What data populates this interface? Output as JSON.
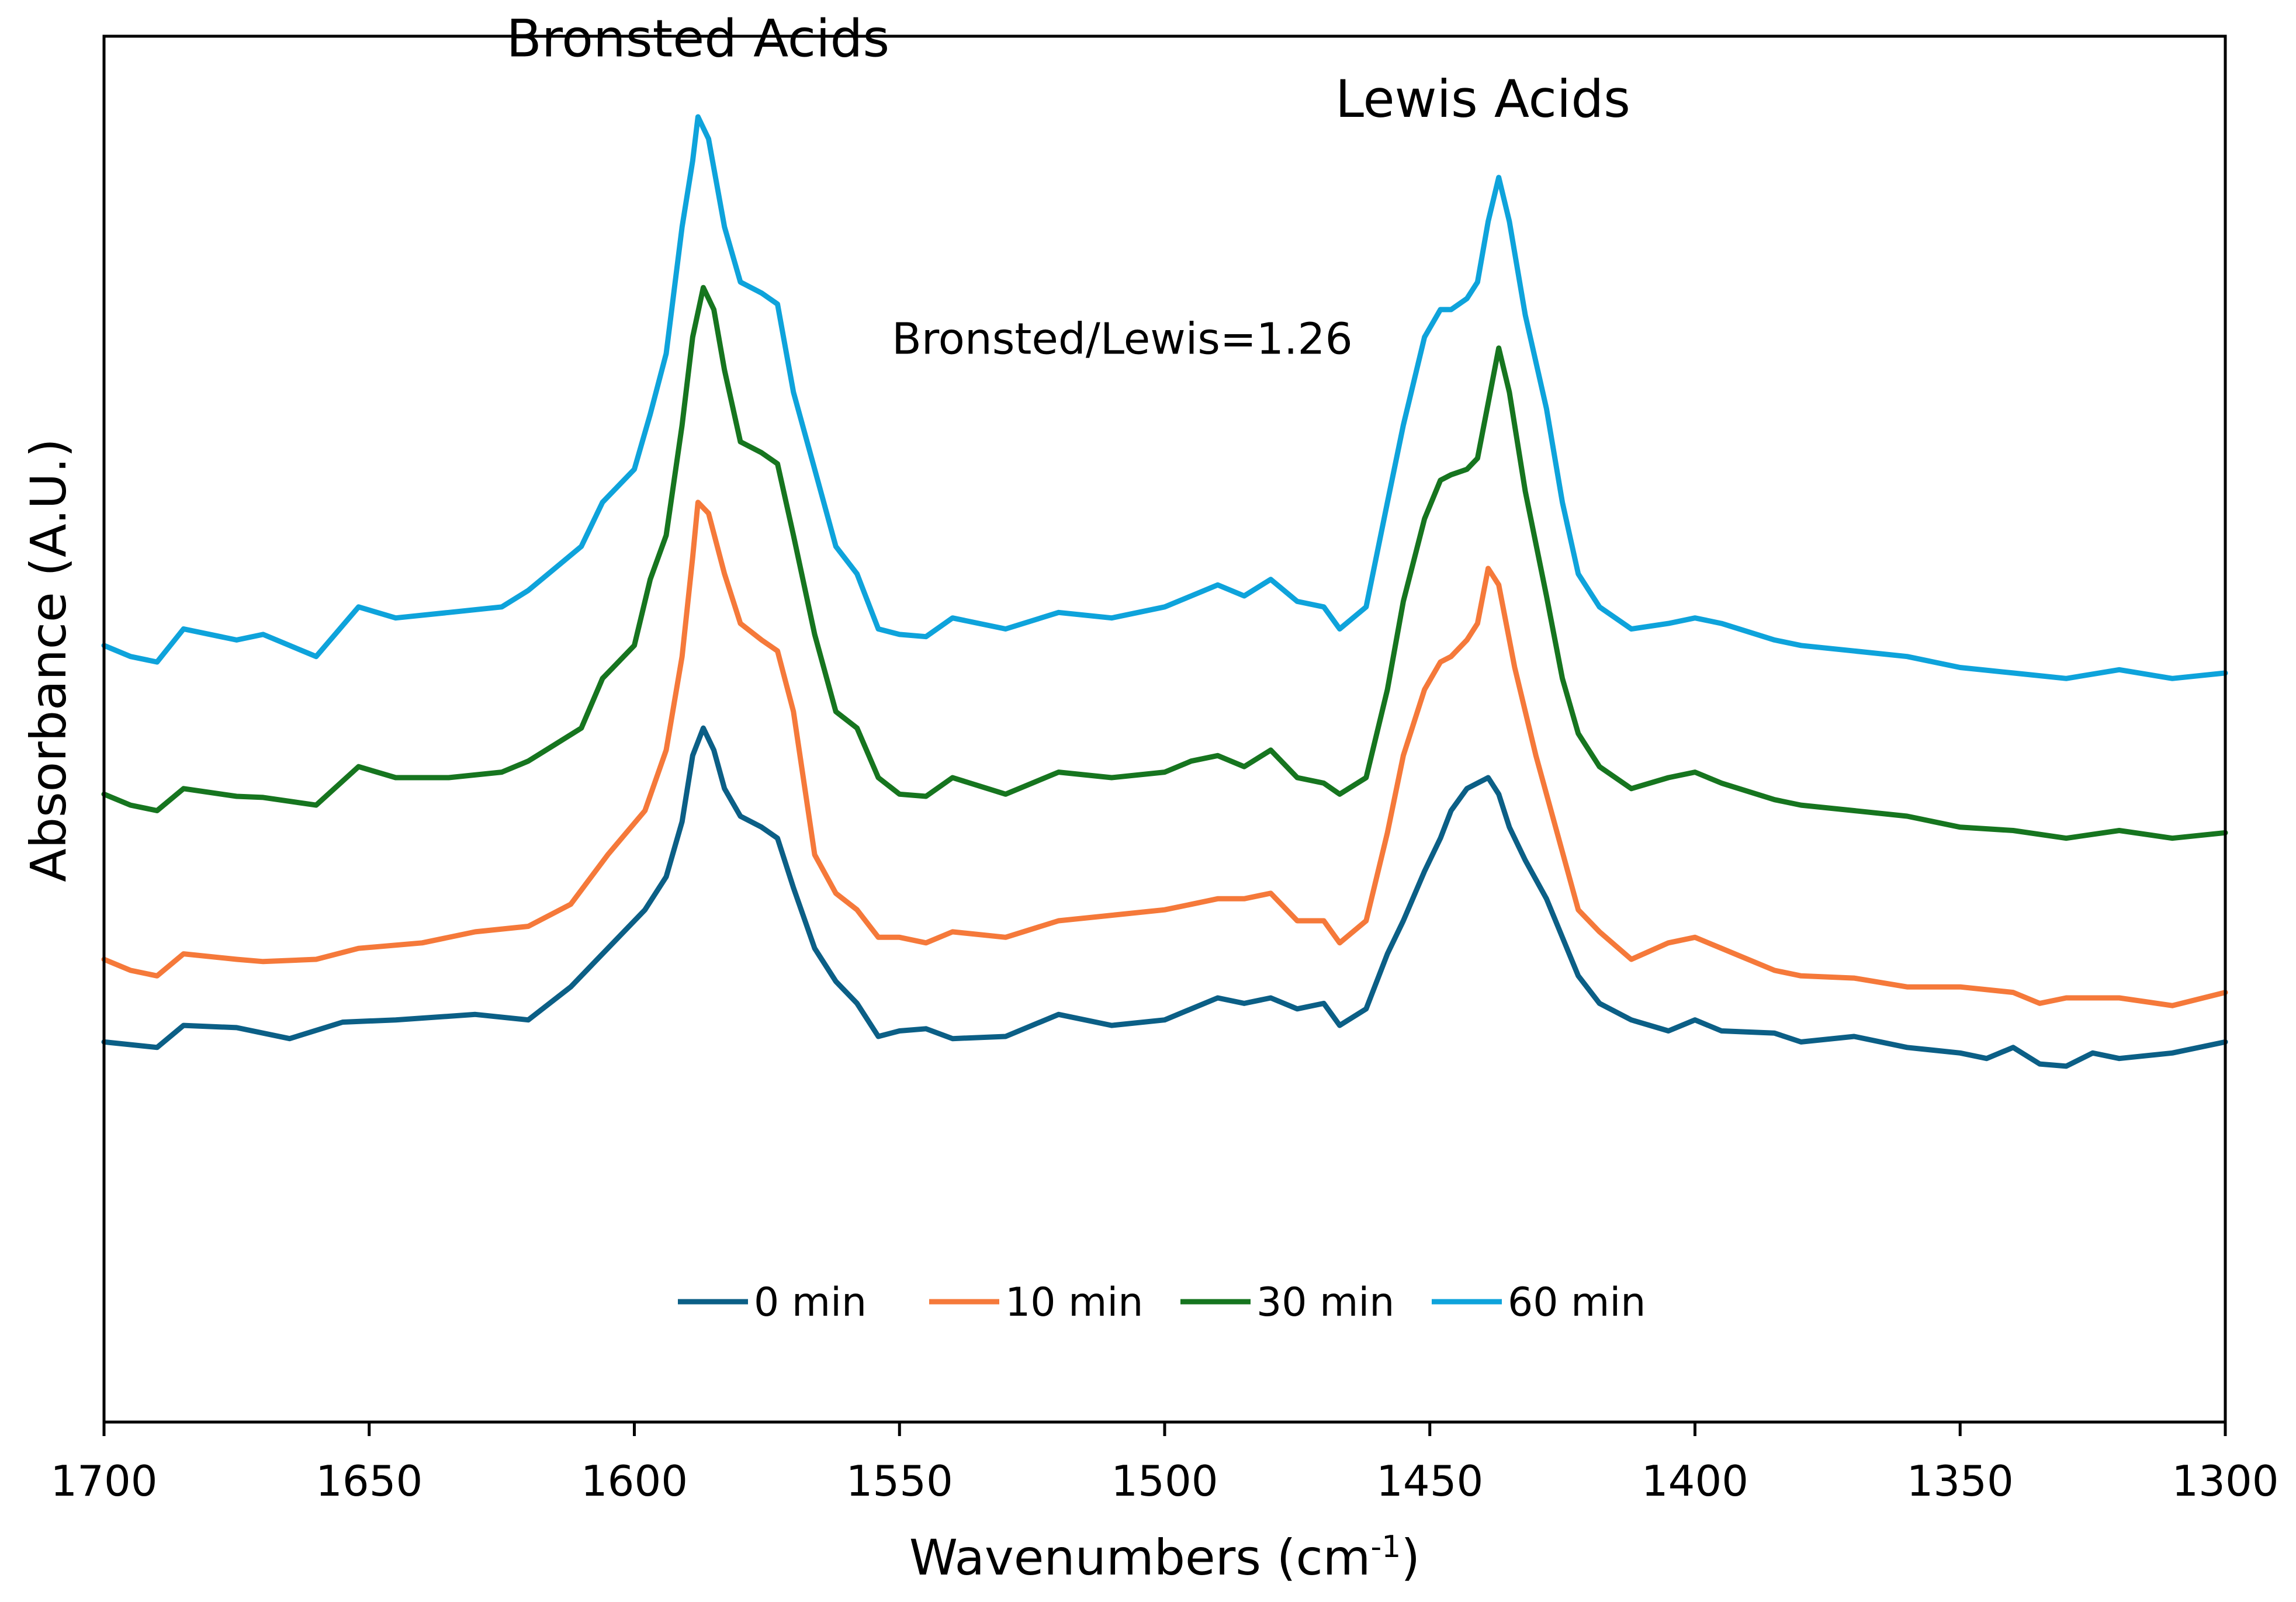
{
  "chart_data": {
    "type": "line",
    "title": "",
    "xlabel": "Wavenumbers (cm",
    "xlabel_sup": "-1",
    "xlabel_close": ")",
    "ylabel": "Absorbance (A.U.)",
    "xlim": [
      1700,
      1300
    ],
    "x_reversed": true,
    "ylim": [
      0,
      1
    ],
    "y_ticks_shown": false,
    "grid": false,
    "x_ticks": [
      "1700",
      "1650",
      "1600",
      "1550",
      "1500",
      "1450",
      "1400",
      "1350",
      "1300"
    ],
    "annotations": {
      "bronsted": "Bronsted Acids",
      "lewis": "Lewis Acids",
      "ratio": "Bronsted/Lewis=1.26"
    },
    "legend_position": "bottom-center",
    "series": [
      {
        "name": "0 min",
        "color": "#0b5f86",
        "points": [
          [
            1700,
            0.16
          ],
          [
            1690,
            0.155
          ],
          [
            1685,
            0.175
          ],
          [
            1675,
            0.173
          ],
          [
            1665,
            0.163
          ],
          [
            1655,
            0.178
          ],
          [
            1645,
            0.18
          ],
          [
            1630,
            0.185
          ],
          [
            1620,
            0.18
          ],
          [
            1612,
            0.21
          ],
          [
            1605,
            0.245
          ],
          [
            1598,
            0.28
          ],
          [
            1594,
            0.31
          ],
          [
            1591,
            0.36
          ],
          [
            1589,
            0.42
          ],
          [
            1587,
            0.445
          ],
          [
            1585,
            0.425
          ],
          [
            1583,
            0.39
          ],
          [
            1580,
            0.365
          ],
          [
            1576,
            0.355
          ],
          [
            1573,
            0.345
          ],
          [
            1570,
            0.3
          ],
          [
            1566,
            0.245
          ],
          [
            1562,
            0.215
          ],
          [
            1558,
            0.195
          ],
          [
            1554,
            0.165
          ],
          [
            1550,
            0.17
          ],
          [
            1545,
            0.172
          ],
          [
            1540,
            0.163
          ],
          [
            1530,
            0.165
          ],
          [
            1520,
            0.185
          ],
          [
            1510,
            0.175
          ],
          [
            1500,
            0.18
          ],
          [
            1495,
            0.19
          ],
          [
            1490,
            0.2
          ],
          [
            1485,
            0.195
          ],
          [
            1480,
            0.2
          ],
          [
            1475,
            0.19
          ],
          [
            1470,
            0.195
          ],
          [
            1467,
            0.175
          ],
          [
            1462,
            0.19
          ],
          [
            1458,
            0.24
          ],
          [
            1455,
            0.27
          ],
          [
            1451,
            0.315
          ],
          [
            1448,
            0.345
          ],
          [
            1446,
            0.37
          ],
          [
            1443,
            0.39
          ],
          [
            1441,
            0.395
          ],
          [
            1439,
            0.4
          ],
          [
            1437,
            0.385
          ],
          [
            1435,
            0.355
          ],
          [
            1432,
            0.325
          ],
          [
            1428,
            0.29
          ],
          [
            1425,
            0.255
          ],
          [
            1422,
            0.22
          ],
          [
            1418,
            0.195
          ],
          [
            1412,
            0.18
          ],
          [
            1405,
            0.17
          ],
          [
            1400,
            0.18
          ],
          [
            1395,
            0.17
          ],
          [
            1385,
            0.168
          ],
          [
            1380,
            0.16
          ],
          [
            1370,
            0.165
          ],
          [
            1360,
            0.155
          ],
          [
            1350,
            0.15
          ],
          [
            1345,
            0.145
          ],
          [
            1340,
            0.155
          ],
          [
            1335,
            0.14
          ],
          [
            1330,
            0.138
          ],
          [
            1325,
            0.15
          ],
          [
            1320,
            0.145
          ],
          [
            1310,
            0.15
          ],
          [
            1300,
            0.16
          ]
        ]
      },
      {
        "name": "10 min",
        "color": "#f5793a",
        "points": [
          [
            1700,
            0.235
          ],
          [
            1695,
            0.225
          ],
          [
            1690,
            0.22
          ],
          [
            1685,
            0.24
          ],
          [
            1675,
            0.235
          ],
          [
            1670,
            0.233
          ],
          [
            1660,
            0.235
          ],
          [
            1652,
            0.245
          ],
          [
            1640,
            0.25
          ],
          [
            1630,
            0.26
          ],
          [
            1620,
            0.265
          ],
          [
            1612,
            0.285
          ],
          [
            1605,
            0.33
          ],
          [
            1598,
            0.37
          ],
          [
            1594,
            0.425
          ],
          [
            1591,
            0.51
          ],
          [
            1589,
            0.6
          ],
          [
            1588,
            0.65
          ],
          [
            1586,
            0.64
          ],
          [
            1583,
            0.585
          ],
          [
            1580,
            0.54
          ],
          [
            1576,
            0.525
          ],
          [
            1573,
            0.515
          ],
          [
            1570,
            0.46
          ],
          [
            1566,
            0.33
          ],
          [
            1562,
            0.295
          ],
          [
            1558,
            0.28
          ],
          [
            1554,
            0.255
          ],
          [
            1550,
            0.255
          ],
          [
            1545,
            0.25
          ],
          [
            1540,
            0.26
          ],
          [
            1530,
            0.255
          ],
          [
            1520,
            0.27
          ],
          [
            1510,
            0.275
          ],
          [
            1500,
            0.28
          ],
          [
            1495,
            0.285
          ],
          [
            1490,
            0.29
          ],
          [
            1485,
            0.29
          ],
          [
            1480,
            0.295
          ],
          [
            1475,
            0.27
          ],
          [
            1470,
            0.27
          ],
          [
            1467,
            0.25
          ],
          [
            1462,
            0.27
          ],
          [
            1458,
            0.35
          ],
          [
            1455,
            0.42
          ],
          [
            1451,
            0.48
          ],
          [
            1448,
            0.505
          ],
          [
            1446,
            0.51
          ],
          [
            1443,
            0.525
          ],
          [
            1441,
            0.54
          ],
          [
            1439,
            0.59
          ],
          [
            1437,
            0.575
          ],
          [
            1434,
            0.5
          ],
          [
            1430,
            0.42
          ],
          [
            1426,
            0.35
          ],
          [
            1422,
            0.28
          ],
          [
            1418,
            0.26
          ],
          [
            1412,
            0.235
          ],
          [
            1405,
            0.25
          ],
          [
            1400,
            0.255
          ],
          [
            1395,
            0.245
          ],
          [
            1385,
            0.225
          ],
          [
            1380,
            0.22
          ],
          [
            1370,
            0.218
          ],
          [
            1360,
            0.21
          ],
          [
            1350,
            0.21
          ],
          [
            1340,
            0.205
          ],
          [
            1335,
            0.195
          ],
          [
            1330,
            0.2
          ],
          [
            1320,
            0.2
          ],
          [
            1310,
            0.193
          ],
          [
            1300,
            0.205
          ]
        ]
      },
      {
        "name": "30 min",
        "color": "#16751f",
        "points": [
          [
            1700,
            0.385
          ],
          [
            1695,
            0.375
          ],
          [
            1690,
            0.37
          ],
          [
            1685,
            0.39
          ],
          [
            1675,
            0.383
          ],
          [
            1670,
            0.382
          ],
          [
            1660,
            0.375
          ],
          [
            1652,
            0.41
          ],
          [
            1645,
            0.4
          ],
          [
            1635,
            0.4
          ],
          [
            1625,
            0.405
          ],
          [
            1620,
            0.415
          ],
          [
            1615,
            0.43
          ],
          [
            1610,
            0.445
          ],
          [
            1606,
            0.49
          ],
          [
            1600,
            0.52
          ],
          [
            1597,
            0.58
          ],
          [
            1594,
            0.62
          ],
          [
            1591,
            0.72
          ],
          [
            1589,
            0.8
          ],
          [
            1587,
            0.845
          ],
          [
            1585,
            0.825
          ],
          [
            1583,
            0.77
          ],
          [
            1580,
            0.705
          ],
          [
            1576,
            0.695
          ],
          [
            1573,
            0.685
          ],
          [
            1570,
            0.62
          ],
          [
            1566,
            0.53
          ],
          [
            1562,
            0.46
          ],
          [
            1558,
            0.445
          ],
          [
            1554,
            0.4
          ],
          [
            1550,
            0.385
          ],
          [
            1545,
            0.383
          ],
          [
            1540,
            0.4
          ],
          [
            1530,
            0.385
          ],
          [
            1520,
            0.405
          ],
          [
            1510,
            0.4
          ],
          [
            1500,
            0.405
          ],
          [
            1495,
            0.415
          ],
          [
            1490,
            0.42
          ],
          [
            1485,
            0.41
          ],
          [
            1480,
            0.425
          ],
          [
            1475,
            0.4
          ],
          [
            1470,
            0.395
          ],
          [
            1467,
            0.385
          ],
          [
            1462,
            0.4
          ],
          [
            1458,
            0.48
          ],
          [
            1455,
            0.56
          ],
          [
            1451,
            0.635
          ],
          [
            1448,
            0.67
          ],
          [
            1446,
            0.675
          ],
          [
            1443,
            0.68
          ],
          [
            1441,
            0.69
          ],
          [
            1439,
            0.74
          ],
          [
            1437,
            0.79
          ],
          [
            1435,
            0.75
          ],
          [
            1432,
            0.66
          ],
          [
            1428,
            0.565
          ],
          [
            1425,
            0.49
          ],
          [
            1422,
            0.44
          ],
          [
            1418,
            0.41
          ],
          [
            1412,
            0.39
          ],
          [
            1405,
            0.4
          ],
          [
            1400,
            0.405
          ],
          [
            1395,
            0.395
          ],
          [
            1385,
            0.38
          ],
          [
            1380,
            0.375
          ],
          [
            1370,
            0.37
          ],
          [
            1360,
            0.365
          ],
          [
            1350,
            0.355
          ],
          [
            1340,
            0.352
          ],
          [
            1330,
            0.345
          ],
          [
            1320,
            0.352
          ],
          [
            1310,
            0.345
          ],
          [
            1300,
            0.35
          ]
        ]
      },
      {
        "name": "60 min",
        "color": "#0ea3db",
        "points": [
          [
            1700,
            0.52
          ],
          [
            1695,
            0.51
          ],
          [
            1690,
            0.505
          ],
          [
            1685,
            0.535
          ],
          [
            1675,
            0.525
          ],
          [
            1670,
            0.53
          ],
          [
            1660,
            0.51
          ],
          [
            1652,
            0.555
          ],
          [
            1645,
            0.545
          ],
          [
            1635,
            0.55
          ],
          [
            1625,
            0.555
          ],
          [
            1620,
            0.57
          ],
          [
            1615,
            0.59
          ],
          [
            1610,
            0.61
          ],
          [
            1606,
            0.65
          ],
          [
            1600,
            0.68
          ],
          [
            1597,
            0.73
          ],
          [
            1594,
            0.785
          ],
          [
            1591,
            0.9
          ],
          [
            1589,
            0.96
          ],
          [
            1588,
            1.0
          ],
          [
            1586,
            0.98
          ],
          [
            1583,
            0.9
          ],
          [
            1580,
            0.85
          ],
          [
            1576,
            0.84
          ],
          [
            1573,
            0.83
          ],
          [
            1570,
            0.75
          ],
          [
            1566,
            0.68
          ],
          [
            1562,
            0.61
          ],
          [
            1558,
            0.585
          ],
          [
            1554,
            0.535
          ],
          [
            1550,
            0.53
          ],
          [
            1545,
            0.528
          ],
          [
            1540,
            0.545
          ],
          [
            1530,
            0.535
          ],
          [
            1520,
            0.55
          ],
          [
            1510,
            0.545
          ],
          [
            1500,
            0.555
          ],
          [
            1495,
            0.565
          ],
          [
            1490,
            0.575
          ],
          [
            1485,
            0.565
          ],
          [
            1480,
            0.58
          ],
          [
            1475,
            0.56
          ],
          [
            1470,
            0.555
          ],
          [
            1467,
            0.535
          ],
          [
            1462,
            0.555
          ],
          [
            1458,
            0.65
          ],
          [
            1455,
            0.72
          ],
          [
            1451,
            0.8
          ],
          [
            1448,
            0.825
          ],
          [
            1446,
            0.825
          ],
          [
            1443,
            0.835
          ],
          [
            1441,
            0.85
          ],
          [
            1439,
            0.905
          ],
          [
            1437,
            0.945
          ],
          [
            1435,
            0.905
          ],
          [
            1432,
            0.82
          ],
          [
            1428,
            0.735
          ],
          [
            1425,
            0.65
          ],
          [
            1422,
            0.585
          ],
          [
            1418,
            0.555
          ],
          [
            1412,
            0.535
          ],
          [
            1405,
            0.54
          ],
          [
            1400,
            0.545
          ],
          [
            1395,
            0.54
          ],
          [
            1385,
            0.525
          ],
          [
            1380,
            0.52
          ],
          [
            1370,
            0.515
          ],
          [
            1360,
            0.51
          ],
          [
            1350,
            0.5
          ],
          [
            1340,
            0.495
          ],
          [
            1330,
            0.49
          ],
          [
            1320,
            0.498
          ],
          [
            1310,
            0.49
          ],
          [
            1300,
            0.495
          ]
        ]
      }
    ]
  }
}
